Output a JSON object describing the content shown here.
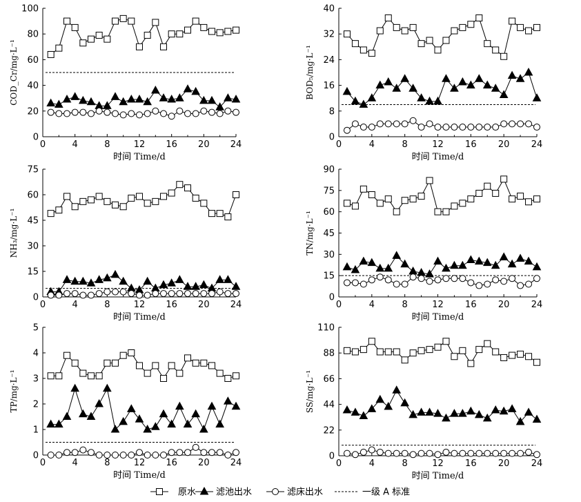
{
  "legend": {
    "items": [
      {
        "label": "原水",
        "style": "line-square"
      },
      {
        "label": "滤池出水",
        "style": "line-triangle"
      },
      {
        "label": "滤床出水",
        "style": "line-circle"
      },
      {
        "label": "一级 A 标准",
        "style": "dashed"
      }
    ]
  },
  "chart_data": [
    {
      "type": "line",
      "ylabel": "COD_Cr/mg·L⁻¹",
      "xlabel": "时间 Time/d",
      "xlim": [
        0,
        24
      ],
      "xticks": [
        0,
        4,
        8,
        12,
        16,
        20,
        24
      ],
      "ylim": [
        0,
        100
      ],
      "yticks": [
        0,
        20,
        40,
        60,
        80,
        100
      ],
      "standard": 50,
      "x": [
        1,
        2,
        3,
        4,
        5,
        6,
        7,
        8,
        9,
        10,
        11,
        12,
        13,
        14,
        15,
        16,
        17,
        18,
        19,
        20,
        21,
        22,
        23,
        24
      ],
      "series": [
        {
          "name": "原水",
          "marker": "square",
          "values": [
            64,
            69,
            90,
            85,
            73,
            76,
            79,
            76,
            90,
            92,
            90,
            70,
            79,
            89,
            70,
            80,
            80,
            83,
            90,
            85,
            82,
            81,
            82,
            83
          ]
        },
        {
          "name": "滤池出水",
          "marker": "triangle",
          "values": [
            26,
            25,
            29,
            31,
            28,
            27,
            24,
            24,
            31,
            27,
            29,
            29,
            27,
            36,
            30,
            29,
            30,
            37,
            35,
            28,
            28,
            23,
            30,
            29
          ]
        },
        {
          "name": "滤床出水",
          "marker": "circle",
          "values": [
            19,
            18,
            18,
            19,
            19,
            18,
            20,
            19,
            18,
            17,
            18,
            17,
            18,
            20,
            18,
            16,
            20,
            18,
            18,
            20,
            19,
            18,
            20,
            19
          ]
        }
      ]
    },
    {
      "type": "line",
      "ylabel": "BOD₅/mg·L⁻¹",
      "xlabel": "时间 Time/d",
      "xlim": [
        0,
        24
      ],
      "xticks": [
        0,
        4,
        8,
        12,
        16,
        20,
        24
      ],
      "ylim": [
        0,
        40
      ],
      "yticks": [
        0,
        8,
        16,
        24,
        32,
        40
      ],
      "standard": 10,
      "x": [
        1,
        2,
        3,
        4,
        5,
        6,
        7,
        8,
        9,
        10,
        11,
        12,
        13,
        14,
        15,
        16,
        17,
        18,
        19,
        20,
        21,
        22,
        23,
        24
      ],
      "series": [
        {
          "name": "原水",
          "marker": "square",
          "values": [
            32,
            29,
            27,
            26,
            33,
            37,
            34,
            33,
            34,
            29,
            30,
            27,
            30,
            33,
            34,
            35,
            37,
            29,
            27,
            25,
            36,
            34,
            33,
            34
          ]
        },
        {
          "name": "滤池出水",
          "marker": "triangle",
          "values": [
            14,
            11,
            10,
            12,
            16,
            17,
            15,
            18,
            15,
            12,
            11,
            11,
            18,
            15,
            17,
            16,
            18,
            16,
            15,
            13,
            19,
            18,
            20,
            12
          ]
        },
        {
          "name": "滤床出水",
          "marker": "circle",
          "values": [
            2,
            4,
            3,
            3,
            4,
            4,
            4,
            4,
            5,
            3,
            4,
            3,
            3,
            3,
            3,
            3,
            3,
            3,
            3,
            4,
            4,
            4,
            4,
            3
          ]
        }
      ]
    },
    {
      "type": "line",
      "ylabel": "NH₃/mg·L⁻¹",
      "xlabel": "时间 Time/d",
      "xlim": [
        0,
        24
      ],
      "xticks": [
        0,
        4,
        8,
        12,
        16,
        20,
        24
      ],
      "ylim": [
        0,
        75
      ],
      "yticks": [
        0,
        15,
        30,
        45,
        60,
        75
      ],
      "standard": 5,
      "x": [
        1,
        2,
        3,
        4,
        5,
        6,
        7,
        8,
        9,
        10,
        11,
        12,
        13,
        14,
        15,
        16,
        17,
        18,
        19,
        20,
        21,
        22,
        23,
        24
      ],
      "series": [
        {
          "name": "原水",
          "marker": "square",
          "values": [
            49,
            51,
            59,
            53,
            56,
            57,
            59,
            56,
            54,
            53,
            58,
            59,
            55,
            56,
            59,
            61,
            66,
            64,
            58,
            55,
            49,
            49,
            47,
            60
          ]
        },
        {
          "name": "滤池出水",
          "marker": "triangle",
          "values": [
            3,
            3,
            10,
            9,
            9,
            8,
            10,
            11,
            13,
            9,
            5,
            4,
            9,
            5,
            7,
            8,
            10,
            6,
            6,
            7,
            5,
            10,
            10,
            6
          ]
        },
        {
          "name": "滤床出水",
          "marker": "circle",
          "values": [
            1,
            1,
            2,
            2,
            1,
            1,
            2,
            3,
            3,
            3,
            2,
            1,
            1,
            2,
            2,
            2,
            2,
            2,
            2,
            2,
            2,
            3,
            2,
            2
          ]
        }
      ]
    },
    {
      "type": "line",
      "ylabel": "TN/mg·L⁻¹",
      "xlabel": "时间 Time/d",
      "xlim": [
        0,
        24
      ],
      "xticks": [
        0,
        4,
        8,
        12,
        16,
        20,
        24
      ],
      "ylim": [
        0,
        90
      ],
      "yticks": [
        0,
        15,
        30,
        45,
        60,
        75,
        90
      ],
      "standard": 15,
      "x": [
        1,
        2,
        3,
        4,
        5,
        6,
        7,
        8,
        9,
        10,
        11,
        12,
        13,
        14,
        15,
        16,
        17,
        18,
        19,
        20,
        21,
        22,
        23,
        24
      ],
      "series": [
        {
          "name": "原水",
          "marker": "square",
          "values": [
            66,
            64,
            76,
            72,
            66,
            69,
            60,
            68,
            69,
            71,
            82,
            60,
            60,
            64,
            66,
            69,
            73,
            78,
            73,
            83,
            69,
            71,
            67,
            69
          ]
        },
        {
          "name": "滤池出水",
          "marker": "triangle",
          "values": [
            21,
            19,
            25,
            24,
            20,
            20,
            29,
            23,
            18,
            17,
            16,
            25,
            20,
            22,
            22,
            26,
            25,
            24,
            22,
            28,
            23,
            27,
            25,
            21
          ]
        },
        {
          "name": "滤床出水",
          "marker": "circle",
          "values": [
            10,
            10,
            9,
            12,
            14,
            12,
            9,
            9,
            14,
            13,
            11,
            12,
            13,
            13,
            13,
            10,
            8,
            9,
            12,
            11,
            13,
            8,
            9,
            13
          ]
        }
      ]
    },
    {
      "type": "line",
      "ylabel": "TP/mg·L⁻¹",
      "xlabel": "时间 Time/d",
      "xlim": [
        0,
        24
      ],
      "xticks": [
        0,
        4,
        8,
        12,
        16,
        20,
        24
      ],
      "ylim": [
        0,
        5
      ],
      "yticks": [
        0,
        1,
        2,
        3,
        4,
        5
      ],
      "standard": 0.5,
      "x": [
        1,
        2,
        3,
        4,
        5,
        6,
        7,
        8,
        9,
        10,
        11,
        12,
        13,
        14,
        15,
        16,
        17,
        18,
        19,
        20,
        21,
        22,
        23,
        24
      ],
      "series": [
        {
          "name": "原水",
          "marker": "square",
          "values": [
            3.1,
            3.1,
            3.9,
            3.6,
            3.2,
            3.1,
            3.1,
            3.6,
            3.6,
            3.9,
            4.0,
            3.5,
            3.2,
            3.5,
            3.0,
            3.5,
            3.2,
            3.8,
            3.6,
            3.6,
            3.5,
            3.2,
            3.0,
            3.1
          ]
        },
        {
          "name": "滤池出水",
          "marker": "triangle",
          "values": [
            1.2,
            1.2,
            1.5,
            2.6,
            1.6,
            1.5,
            2.0,
            2.6,
            1.0,
            1.3,
            1.8,
            1.4,
            1.0,
            1.1,
            1.6,
            1.2,
            1.9,
            1.2,
            1.6,
            1.0,
            1.9,
            1.2,
            2.1,
            1.9
          ]
        },
        {
          "name": "滤床出水",
          "marker": "circle",
          "values": [
            0.0,
            0.0,
            0.1,
            0.1,
            0.2,
            0.1,
            0.0,
            0.0,
            0.0,
            0.0,
            0.0,
            0.1,
            0.0,
            0.0,
            0.0,
            0.1,
            0.1,
            0.1,
            0.3,
            0.1,
            0.1,
            0.1,
            0.0,
            0.1
          ]
        }
      ]
    },
    {
      "type": "line",
      "ylabel": "SS/mg·L⁻¹",
      "xlabel": "时间 Time/d",
      "xlim": [
        0,
        24
      ],
      "xticks": [
        0,
        4,
        8,
        12,
        16,
        20,
        24
      ],
      "ylim": [
        0,
        110
      ],
      "yticks": [
        0,
        22,
        44,
        66,
        88,
        110
      ],
      "standard": 9,
      "x": [
        1,
        2,
        3,
        4,
        5,
        6,
        7,
        8,
        9,
        10,
        11,
        12,
        13,
        14,
        15,
        16,
        17,
        18,
        19,
        20,
        21,
        22,
        23,
        24
      ],
      "series": [
        {
          "name": "原水",
          "marker": "square",
          "values": [
            90,
            89,
            91,
            98,
            89,
            89,
            89,
            82,
            88,
            90,
            91,
            93,
            98,
            85,
            90,
            79,
            91,
            96,
            89,
            84,
            86,
            87,
            85,
            80
          ]
        },
        {
          "name": "滤池出水",
          "marker": "triangle",
          "values": [
            39,
            37,
            34,
            40,
            48,
            42,
            56,
            45,
            35,
            37,
            37,
            36,
            32,
            36,
            36,
            38,
            35,
            32,
            39,
            38,
            40,
            29,
            37,
            31
          ]
        },
        {
          "name": "滤床出水",
          "marker": "circle",
          "values": [
            2,
            1,
            3,
            5,
            3,
            2,
            2,
            2,
            1,
            2,
            2,
            1,
            3,
            2,
            2,
            2,
            2,
            2,
            2,
            2,
            2,
            2,
            3,
            1
          ]
        }
      ]
    }
  ]
}
